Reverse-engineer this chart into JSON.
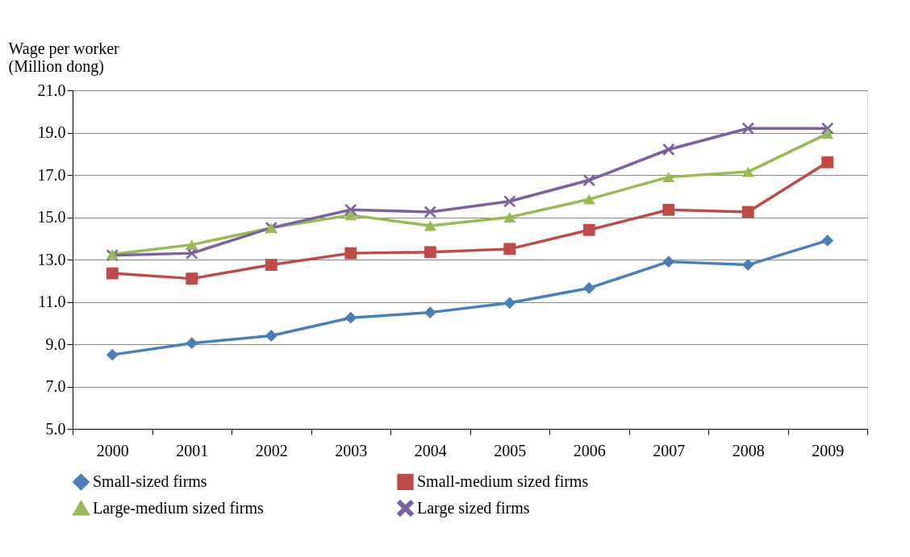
{
  "chart_data": {
    "type": "line",
    "ylabel": "Wage per worker\n (Million dong)",
    "categories": [
      "2000",
      "2001",
      "2002",
      "2003",
      "2004",
      "2005",
      "2006",
      "2007",
      "2008",
      "2009"
    ],
    "series": [
      {
        "name": "Small-sized firms",
        "color": "#4a7ebb",
        "marker": "diamond",
        "values": [
          8.5,
          9.05,
          9.4,
          10.25,
          10.5,
          10.95,
          11.65,
          12.9,
          12.75,
          13.9
        ]
      },
      {
        "name": "Small-medium sized firms",
        "color": "#be4b48",
        "marker": "square",
        "values": [
          12.35,
          12.1,
          12.75,
          13.3,
          13.35,
          13.5,
          14.4,
          15.35,
          15.25,
          17.6
        ]
      },
      {
        "name": "Large-medium sized firms",
        "color": "#98b954",
        "marker": "triangle",
        "values": [
          13.25,
          13.7,
          14.5,
          15.1,
          14.6,
          15.0,
          15.85,
          16.9,
          17.15,
          18.95
        ]
      },
      {
        "name": "Large sized firms",
        "color": "#7d60a0",
        "marker": "cross",
        "values": [
          13.2,
          13.3,
          14.5,
          15.35,
          15.25,
          15.75,
          16.75,
          18.2,
          19.2,
          19.2
        ]
      }
    ],
    "ylim": [
      5,
      21
    ],
    "yticks": [
      {
        "value": 5,
        "label": "5.0"
      },
      {
        "value": 7,
        "label": "7.0"
      },
      {
        "value": 9,
        "label": "9.0"
      },
      {
        "value": 11,
        "label": "11.0"
      },
      {
        "value": 13,
        "label": "13.0"
      },
      {
        "value": 15,
        "label": "15.0"
      },
      {
        "value": 17,
        "label": "17.0"
      },
      {
        "value": 19,
        "label": "19.0"
      },
      {
        "value": 21,
        "label": "21.0"
      }
    ],
    "grid": "y",
    "legend": "bottom",
    "line_style": "solid"
  }
}
